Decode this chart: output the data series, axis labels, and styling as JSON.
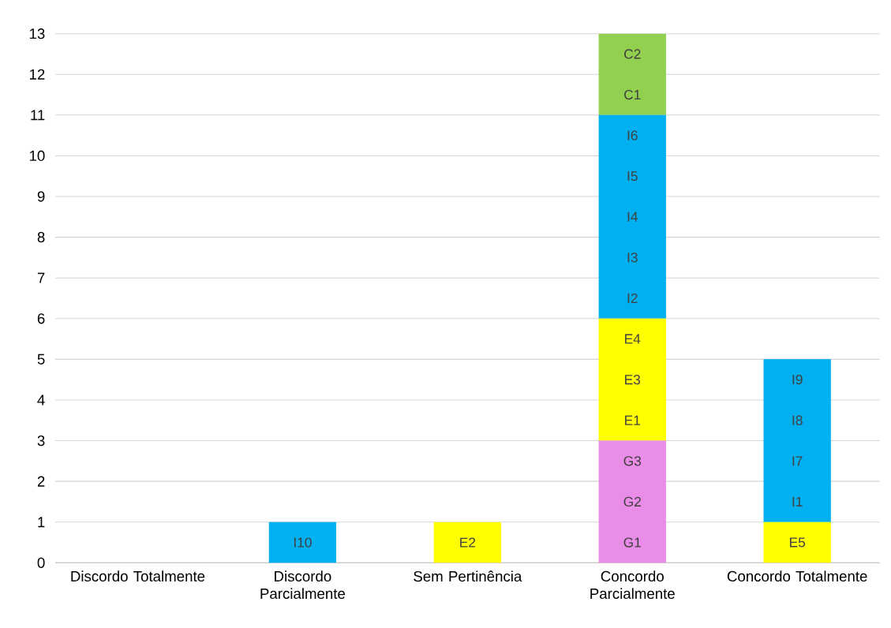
{
  "chart_data": {
    "type": "bar",
    "stacked": true,
    "categories": [
      "Discordo Totalmente",
      "Discordo Parcialmente",
      "Sem Pertinência",
      "Concordo Parcialmente",
      "Concordo Totalmente"
    ],
    "series": [
      {
        "color": "#ea8de8",
        "values": [
          0,
          0,
          0,
          3,
          0
        ]
      },
      {
        "color": "#ffff00",
        "values": [
          0,
          0,
          1,
          3,
          1
        ]
      },
      {
        "color": "#00b0f0",
        "values": [
          0,
          1,
          0,
          5,
          4
        ]
      },
      {
        "color": "#92d050",
        "values": [
          0,
          0,
          0,
          2,
          0
        ]
      }
    ],
    "ylim": [
      0,
      13
    ],
    "yticks": [
      0,
      1,
      2,
      3,
      4,
      5,
      6,
      7,
      8,
      9,
      10,
      11,
      12,
      13
    ],
    "grid": "y",
    "annotations": [
      "I10",
      "E2",
      "G1",
      "G2",
      "G3",
      "E1",
      "E3",
      "E4",
      "I2",
      "I3",
      "I4",
      "I5",
      "I6",
      "C1",
      "C2",
      "E5",
      "I1",
      "I7",
      "I8",
      "I9"
    ]
  }
}
